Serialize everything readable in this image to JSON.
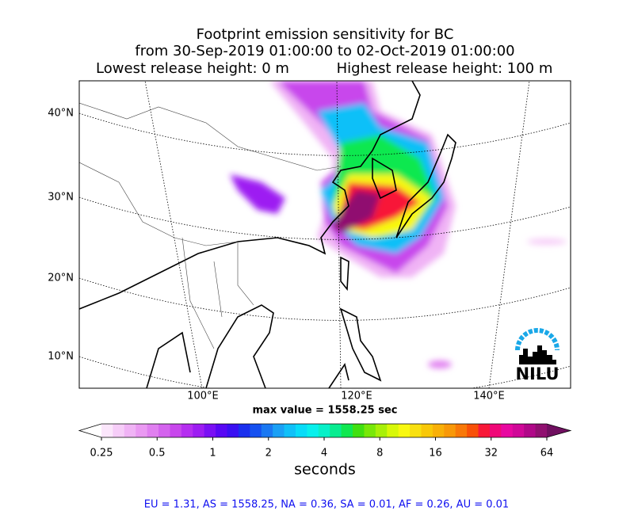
{
  "header": {
    "title": "Footprint emission sensitivity for BC",
    "period": "from 30-Sep-2019 01:00:00 to 02-Oct-2019 01:00:00",
    "lowest": "Lowest release height: 0 m",
    "highest": "Highest release height: 100 m"
  },
  "map": {
    "lat_labels": [
      "40°N",
      "30°N",
      "20°N",
      "10°N"
    ],
    "lon_labels": [
      "100°E",
      "120°E",
      "140°E"
    ],
    "max_value": "max value = 1558.25 sec",
    "logo": "NILU"
  },
  "colorbar": {
    "ticks": [
      0.25,
      0.5,
      1,
      2,
      4,
      8,
      16,
      32,
      64
    ],
    "label": "seconds",
    "log_scale": true,
    "colors": [
      "#ffffff",
      "#fbe6fb",
      "#f6cdf8",
      "#f0b3f5",
      "#ea99f2",
      "#e07ff0",
      "#d463ee",
      "#c847ec",
      "#b52ef0",
      "#9d1df2",
      "#7a10f4",
      "#5808f4",
      "#3a10f2",
      "#1a30ee",
      "#1550f0",
      "#1a78f2",
      "#1aa0f5",
      "#10c0f8",
      "#08dcf8",
      "#08f0ec",
      "#08f0c8",
      "#08ec90",
      "#10e850",
      "#40e010",
      "#78e808",
      "#a8f008",
      "#d8f808",
      "#f8f810",
      "#f8e010",
      "#f8c808",
      "#f8b008",
      "#f89808",
      "#f87808",
      "#f85008",
      "#f81838",
      "#f00878",
      "#e808a0",
      "#d00898",
      "#b00888",
      "#901070",
      "#701060"
    ]
  },
  "footer": {
    "summary": "EU = 1.31,  AS = 1558.25,  NA = 0.36,  SA = 0.01,  AF = 0.26,  AU = 0.01"
  }
}
